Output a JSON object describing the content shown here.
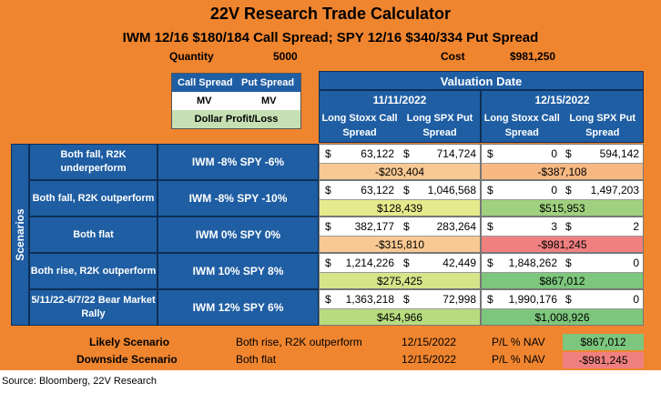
{
  "title": "22V Research Trade Calculator",
  "subtitle": "IWM 12/16 $180/184 Call Spread; SPY 12/16 $340/334 Put Spread",
  "quantity": {
    "label": "Quantity",
    "value": "5000"
  },
  "cost": {
    "label": "Cost",
    "value": "$981,250"
  },
  "legend": {
    "call_spread": "Call Spread",
    "put_spread": "Put Spread",
    "mv1": "MV",
    "mv2": "MV",
    "dollar_pl": "Dollar Profit/Loss"
  },
  "valuation_header": "Valuation Date",
  "dates": [
    {
      "date": "11/11/2022",
      "col1": "Long Stoxx Call Spread",
      "col2": "Long SPX Put Spread"
    },
    {
      "date": "12/15/2022",
      "col1": "Long Stoxx Call Spread",
      "col2": "Long SPX Put Spread"
    }
  ],
  "scenarios_label": "Scenarios",
  "dollar_sign": "$",
  "scenarios": [
    {
      "name": "Both fall, R2K underperform",
      "move": "IWM -8% SPY -6%",
      "d1": {
        "call": "63,122",
        "put": "714,724",
        "pl": "-$203,404"
      },
      "d2": {
        "call": "0",
        "put": "594,142",
        "pl": "-$387,108"
      }
    },
    {
      "name": "Both fall, R2K outperform",
      "move": "IWM -8% SPY -10%",
      "d1": {
        "call": "63,122",
        "put": "1,046,568",
        "pl": "$128,439"
      },
      "d2": {
        "call": "0",
        "put": "1,497,203",
        "pl": "$515,953"
      }
    },
    {
      "name": "Both flat",
      "move": "IWM 0% SPY 0%",
      "d1": {
        "call": "382,177",
        "put": "283,264",
        "pl": "-$315,810"
      },
      "d2": {
        "call": "3",
        "put": "2",
        "pl": "-$981,245"
      }
    },
    {
      "name": "Both rise, R2K outperform",
      "move": "IWM 10% SPY 8%",
      "d1": {
        "call": "1,214,226",
        "put": "42,449",
        "pl": "$275,425"
      },
      "d2": {
        "call": "1,848,262",
        "put": "0",
        "pl": "$867,012"
      }
    },
    {
      "name": "5/11/22-6/7/22 Bear Market Rally",
      "move": "IWM 12% SPY 6%",
      "d1": {
        "call": "1,363,218",
        "put": "72,998",
        "pl": "$454,966"
      },
      "d2": {
        "call": "1,990,176",
        "put": "0",
        "pl": "$1,008,926"
      }
    }
  ],
  "summary": [
    {
      "label": "Likely Scenario",
      "scenario": "Both rise, R2K outperform",
      "date": "12/15/2022",
      "metric": "P/L % NAV",
      "value": "$867,012",
      "color": "#7dc67d"
    },
    {
      "label": "Downside Scenario",
      "scenario": "Both flat",
      "date": "12/15/2022",
      "metric": "P/L % NAV",
      "value": "-$981,245",
      "color": "#f08080"
    }
  ],
  "pl_colors": {
    "d1": [
      "#f9c993",
      "#e6ea8c",
      "#f9c993",
      "#d6e58a",
      "#b7dc80"
    ],
    "d2": [
      "#f7b882",
      "#9fd17f",
      "#f08080",
      "#7dc67d",
      "#7dc67d"
    ]
  },
  "source": "Source: Bloomberg, 22V Research"
}
